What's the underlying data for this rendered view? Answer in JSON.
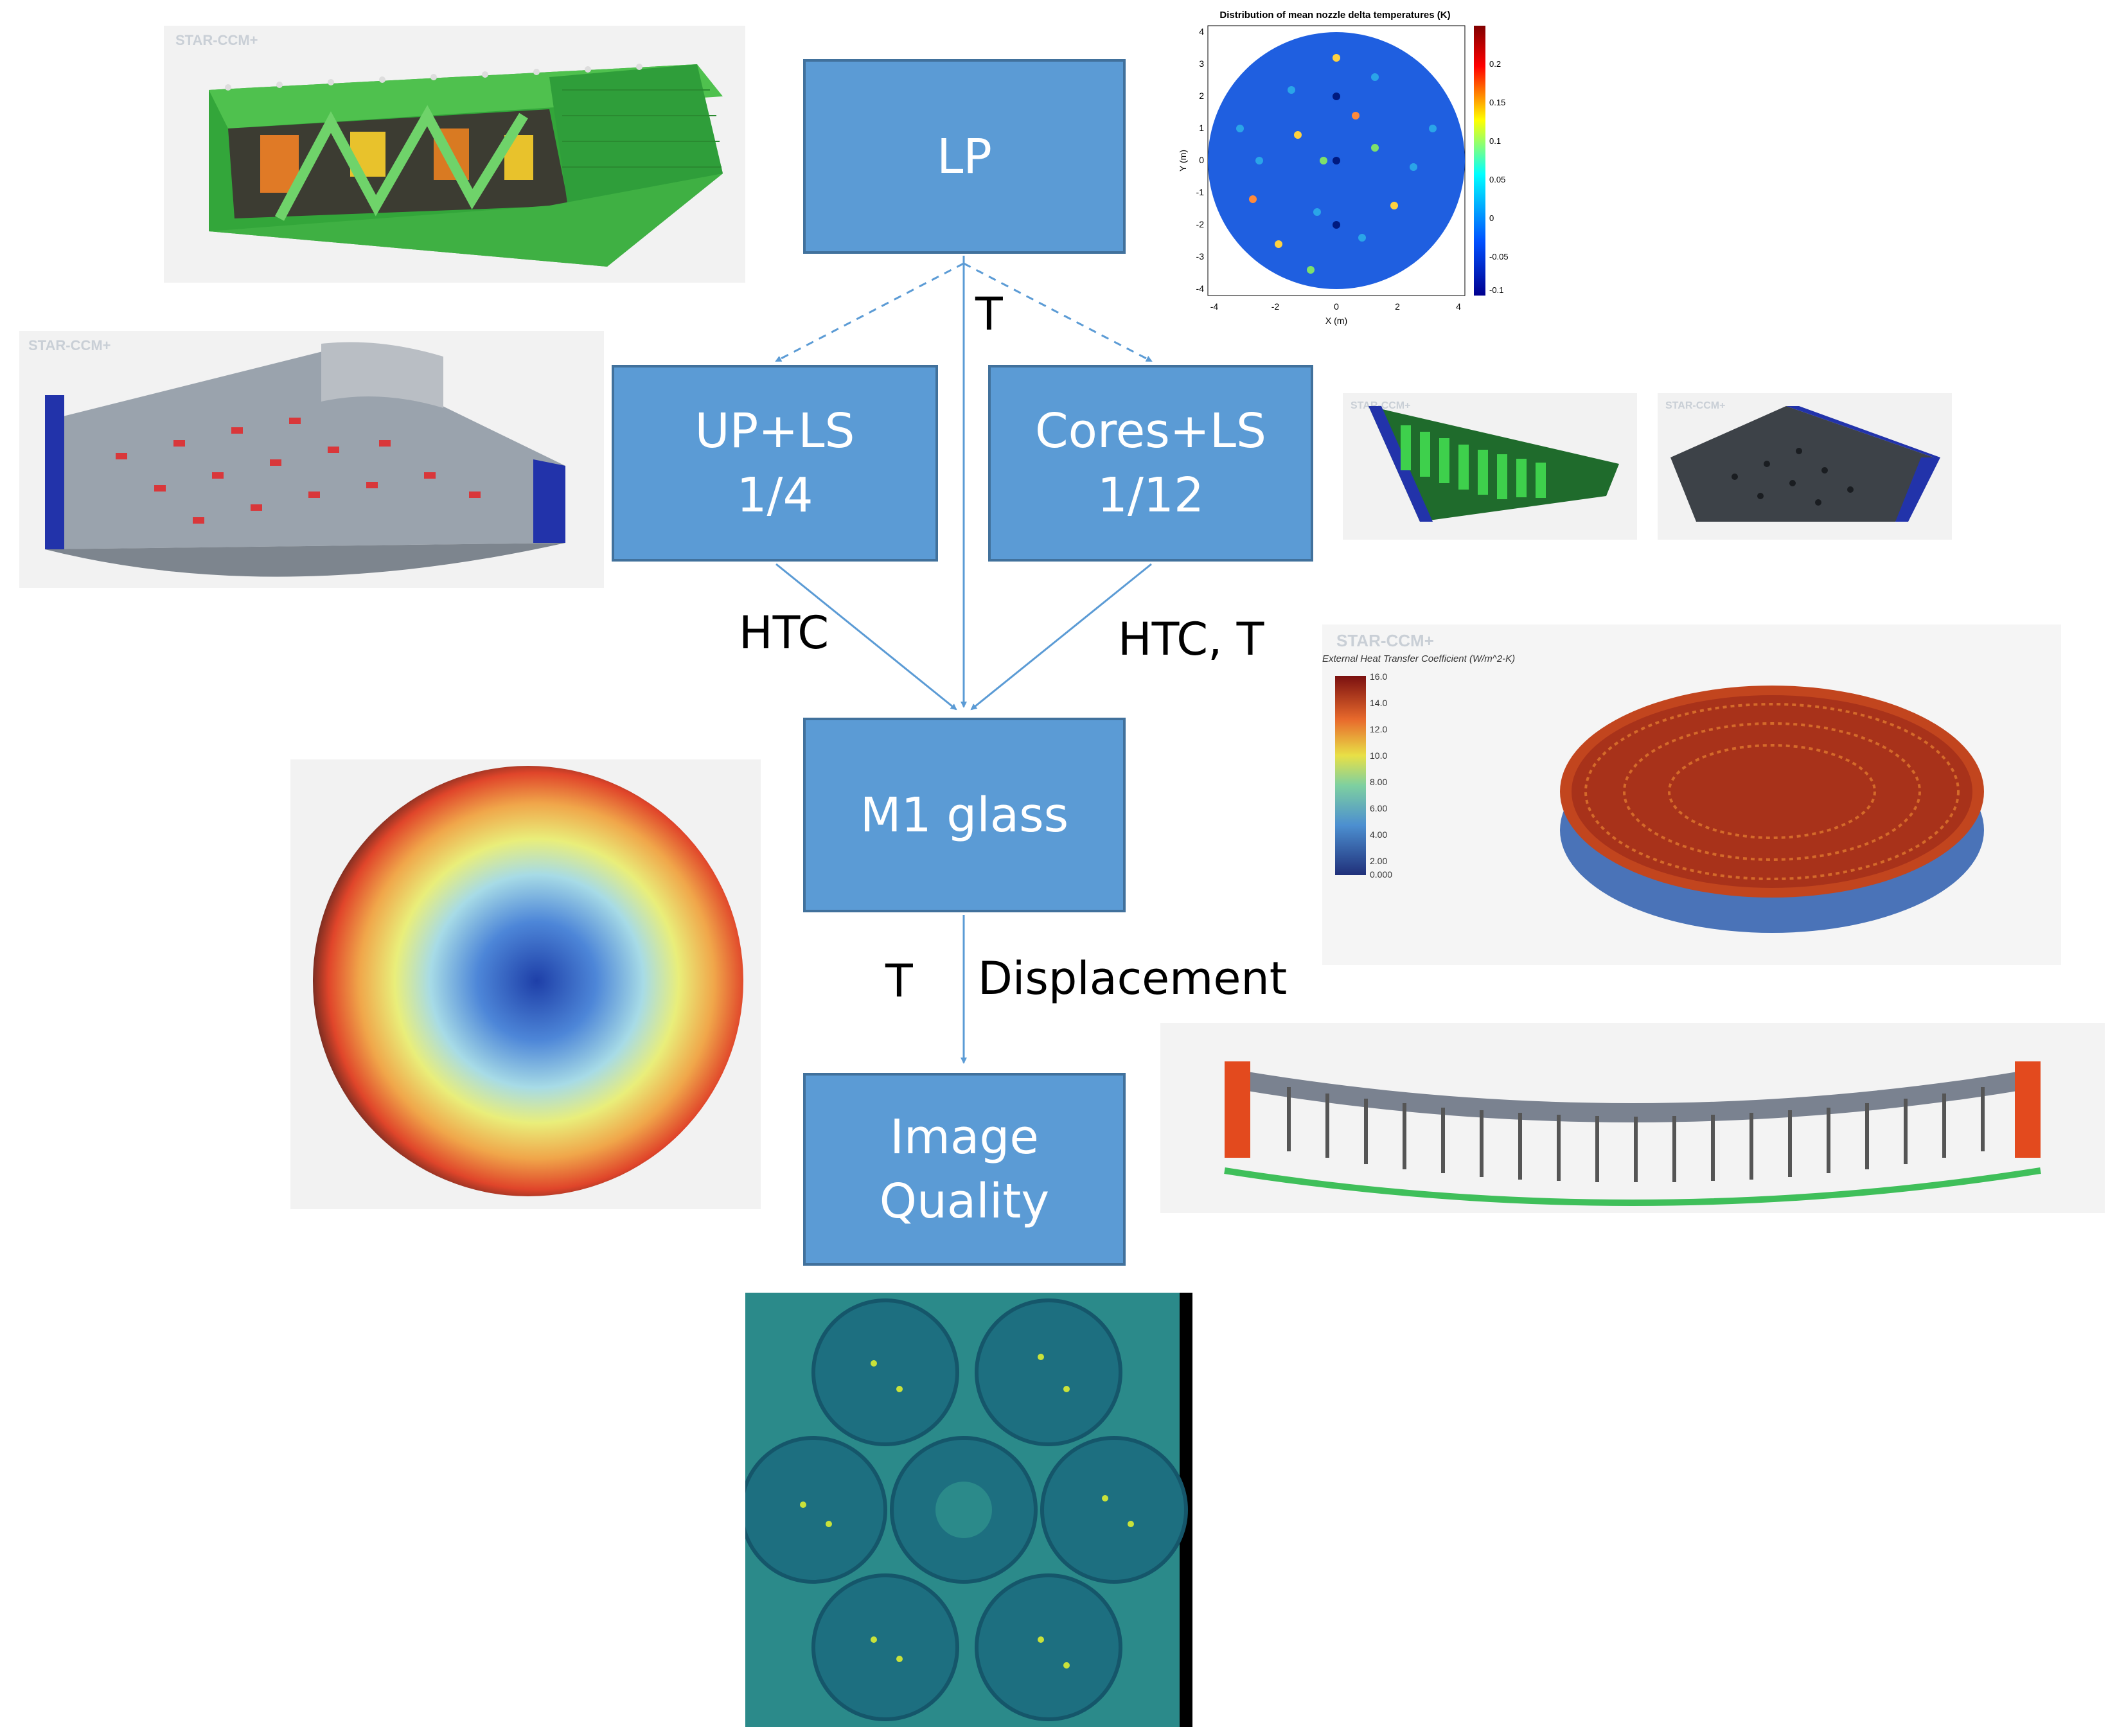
{
  "flow": {
    "lp": "LP",
    "up_ls": [
      "UP+LS",
      "1/4"
    ],
    "cores_ls": [
      "Cores+LS",
      "1/12"
    ],
    "m1": "M1 glass",
    "iq": [
      "Image",
      "Quality"
    ]
  },
  "edges": {
    "t_top": "T",
    "htc_left": "HTC",
    "htc_t_right": "HTC, T",
    "t_bottom": "T",
    "displacement": "Displacement"
  },
  "watermark": "STAR-CCM+",
  "scatter_plot": {
    "title": "Distribution of mean nozzle delta temperatures (K)",
    "xlabel": "X (m)",
    "ylabel": "Y (m)",
    "xticks": [
      "-4",
      "-2",
      "0",
      "2",
      "4"
    ],
    "yticks": [
      "4",
      "3",
      "2",
      "1",
      "0",
      "-1",
      "-2",
      "-3",
      "-4"
    ],
    "cbar_ticks": [
      "0.2",
      "0.15",
      "0.1",
      "0.05",
      "0",
      "-0.05",
      "-0.1"
    ]
  },
  "htc_render": {
    "legend_title": "External Heat Transfer Coefficient (W/m^2-K)",
    "ticks": [
      "16.0",
      "14.0",
      "12.0",
      "10.0",
      "8.00",
      "6.00",
      "4.00",
      "2.00",
      "0.000"
    ]
  },
  "colors": {
    "node_fill": "#5b9bd5",
    "node_border": "#41719c",
    "edge": "#5b9bd5"
  }
}
